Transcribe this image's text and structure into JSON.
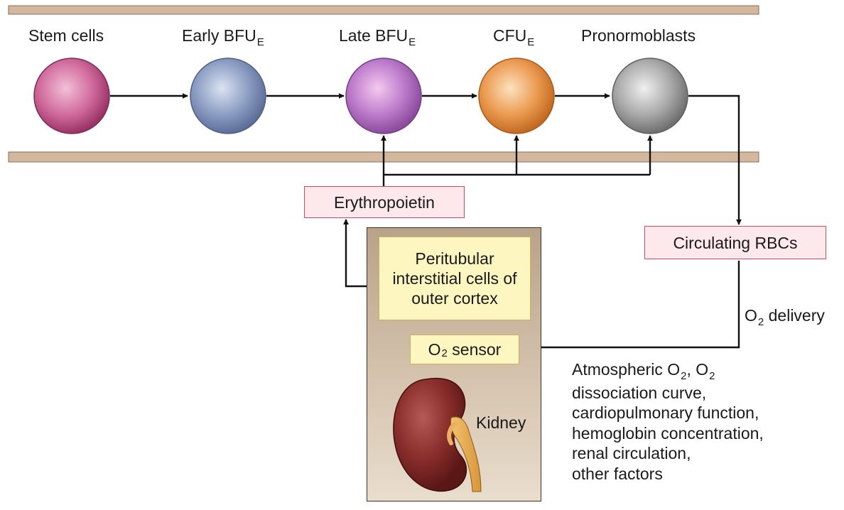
{
  "stages": [
    {
      "name": "Stem cells",
      "sub": "",
      "color": "#c24f8a"
    },
    {
      "name": "Early BFU",
      "sub": "E",
      "color": "#7f93b8"
    },
    {
      "name": "Late BFU",
      "sub": "E",
      "color": "#b268c2"
    },
    {
      "name": "CFU",
      "sub": "E",
      "color": "#e88a3a"
    },
    {
      "name": "Pronormoblasts",
      "sub": "",
      "color": "#9c9c9c"
    }
  ],
  "erythropoietin_label": "Erythropoietin",
  "circulating_label": "Circulating RBCs",
  "interstitial_text": "Peritubular interstitial cells of outer cortex",
  "sensor": {
    "pre": "O",
    "sub": "2",
    "post": " sensor"
  },
  "delivery": {
    "pre": "O",
    "sub": "2",
    "post": " delivery"
  },
  "kidney_label": "Kidney",
  "factors": {
    "line1": {
      "a": "Atmospheric O",
      "a_sub": "2",
      "b": ", O",
      "b_sub": "2"
    },
    "lines": [
      "dissociation curve,",
      "cardiopulmonary function,",
      "hemoglobin concentration,",
      "renal circulation,",
      "other factors"
    ]
  },
  "colors": {
    "band": "#d3b79e",
    "pink_border": "#d34a63",
    "arrow": "#111111"
  }
}
